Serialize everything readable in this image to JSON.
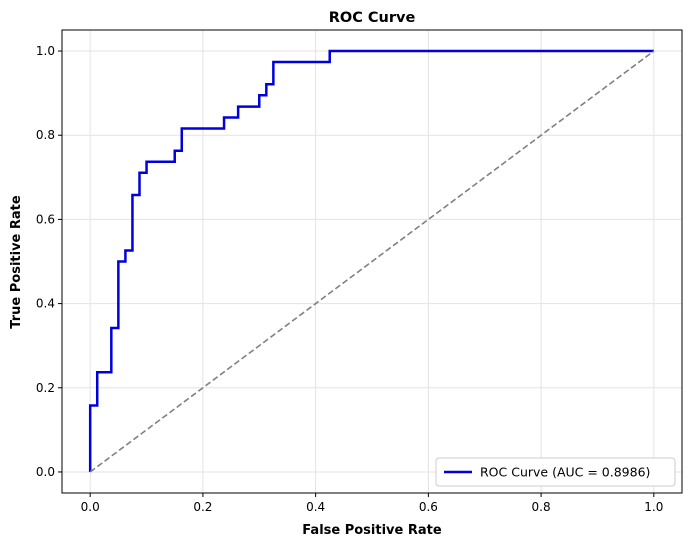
{
  "chart_data": {
    "type": "line",
    "title": "ROC Curve",
    "xlabel": "False Positive Rate",
    "ylabel": "True Positive Rate",
    "xlim": [
      -0.05,
      1.05
    ],
    "ylim": [
      -0.05,
      1.05
    ],
    "xticks": [
      0.0,
      0.2,
      0.4,
      0.6,
      0.8,
      1.0
    ],
    "xtick_labels": [
      "0.0",
      "0.2",
      "0.4",
      "0.6",
      "0.8",
      "1.0"
    ],
    "yticks": [
      0.0,
      0.2,
      0.4,
      0.6,
      0.8,
      1.0
    ],
    "ytick_labels": [
      "0.0",
      "0.2",
      "0.4",
      "0.6",
      "0.8",
      "1.0"
    ],
    "grid": true,
    "legend_position": "lower-right",
    "series": [
      {
        "name": "ROC Curve (AUC = 0.8986)",
        "color": "#0000dd",
        "style": "solid",
        "x": [
          0.0,
          0.0,
          0.0125,
          0.0125,
          0.0375,
          0.0375,
          0.05,
          0.05,
          0.0625,
          0.0625,
          0.075,
          0.075,
          0.0875,
          0.0875,
          0.1,
          0.1,
          0.15,
          0.15,
          0.1625,
          0.1625,
          0.2375,
          0.2375,
          0.2625,
          0.2625,
          0.3,
          0.3,
          0.3125,
          0.3125,
          0.325,
          0.325,
          0.425,
          0.425,
          1.0
        ],
        "y": [
          0.0,
          0.158,
          0.158,
          0.237,
          0.237,
          0.342,
          0.342,
          0.5,
          0.5,
          0.526,
          0.526,
          0.658,
          0.658,
          0.711,
          0.711,
          0.737,
          0.737,
          0.763,
          0.763,
          0.816,
          0.816,
          0.842,
          0.842,
          0.868,
          0.868,
          0.895,
          0.895,
          0.921,
          0.921,
          0.974,
          0.974,
          1.0,
          1.0
        ]
      },
      {
        "name": "",
        "color": "#808080",
        "style": "dashed",
        "x": [
          0.0,
          1.0
        ],
        "y": [
          0.0,
          1.0
        ]
      }
    ]
  }
}
